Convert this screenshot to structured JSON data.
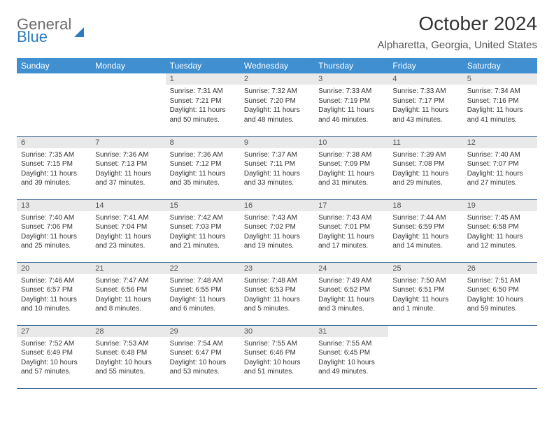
{
  "brand": {
    "word1": "General",
    "word2": "Blue"
  },
  "title": "October 2024",
  "location": "Alpharetta, Georgia, United States",
  "colors": {
    "header_bg": "#3f8fd1",
    "header_text": "#ffffff",
    "daynum_bg": "#e9e9e9",
    "row_border": "#3f6a94",
    "brand_gray": "#6b6b6b",
    "brand_blue": "#2a7bbf"
  },
  "dayHeaders": [
    "Sunday",
    "Monday",
    "Tuesday",
    "Wednesday",
    "Thursday",
    "Friday",
    "Saturday"
  ],
  "weeks": [
    [
      null,
      null,
      {
        "n": "1",
        "sunrise": "7:31 AM",
        "sunset": "7:21 PM",
        "daylight": "11 hours and 50 minutes."
      },
      {
        "n": "2",
        "sunrise": "7:32 AM",
        "sunset": "7:20 PM",
        "daylight": "11 hours and 48 minutes."
      },
      {
        "n": "3",
        "sunrise": "7:33 AM",
        "sunset": "7:19 PM",
        "daylight": "11 hours and 46 minutes."
      },
      {
        "n": "4",
        "sunrise": "7:33 AM",
        "sunset": "7:17 PM",
        "daylight": "11 hours and 43 minutes."
      },
      {
        "n": "5",
        "sunrise": "7:34 AM",
        "sunset": "7:16 PM",
        "daylight": "11 hours and 41 minutes."
      }
    ],
    [
      {
        "n": "6",
        "sunrise": "7:35 AM",
        "sunset": "7:15 PM",
        "daylight": "11 hours and 39 minutes."
      },
      {
        "n": "7",
        "sunrise": "7:36 AM",
        "sunset": "7:13 PM",
        "daylight": "11 hours and 37 minutes."
      },
      {
        "n": "8",
        "sunrise": "7:36 AM",
        "sunset": "7:12 PM",
        "daylight": "11 hours and 35 minutes."
      },
      {
        "n": "9",
        "sunrise": "7:37 AM",
        "sunset": "7:11 PM",
        "daylight": "11 hours and 33 minutes."
      },
      {
        "n": "10",
        "sunrise": "7:38 AM",
        "sunset": "7:09 PM",
        "daylight": "11 hours and 31 minutes."
      },
      {
        "n": "11",
        "sunrise": "7:39 AM",
        "sunset": "7:08 PM",
        "daylight": "11 hours and 29 minutes."
      },
      {
        "n": "12",
        "sunrise": "7:40 AM",
        "sunset": "7:07 PM",
        "daylight": "11 hours and 27 minutes."
      }
    ],
    [
      {
        "n": "13",
        "sunrise": "7:40 AM",
        "sunset": "7:06 PM",
        "daylight": "11 hours and 25 minutes."
      },
      {
        "n": "14",
        "sunrise": "7:41 AM",
        "sunset": "7:04 PM",
        "daylight": "11 hours and 23 minutes."
      },
      {
        "n": "15",
        "sunrise": "7:42 AM",
        "sunset": "7:03 PM",
        "daylight": "11 hours and 21 minutes."
      },
      {
        "n": "16",
        "sunrise": "7:43 AM",
        "sunset": "7:02 PM",
        "daylight": "11 hours and 19 minutes."
      },
      {
        "n": "17",
        "sunrise": "7:43 AM",
        "sunset": "7:01 PM",
        "daylight": "11 hours and 17 minutes."
      },
      {
        "n": "18",
        "sunrise": "7:44 AM",
        "sunset": "6:59 PM",
        "daylight": "11 hours and 14 minutes."
      },
      {
        "n": "19",
        "sunrise": "7:45 AM",
        "sunset": "6:58 PM",
        "daylight": "11 hours and 12 minutes."
      }
    ],
    [
      {
        "n": "20",
        "sunrise": "7:46 AM",
        "sunset": "6:57 PM",
        "daylight": "11 hours and 10 minutes."
      },
      {
        "n": "21",
        "sunrise": "7:47 AM",
        "sunset": "6:56 PM",
        "daylight": "11 hours and 8 minutes."
      },
      {
        "n": "22",
        "sunrise": "7:48 AM",
        "sunset": "6:55 PM",
        "daylight": "11 hours and 6 minutes."
      },
      {
        "n": "23",
        "sunrise": "7:48 AM",
        "sunset": "6:53 PM",
        "daylight": "11 hours and 5 minutes."
      },
      {
        "n": "24",
        "sunrise": "7:49 AM",
        "sunset": "6:52 PM",
        "daylight": "11 hours and 3 minutes."
      },
      {
        "n": "25",
        "sunrise": "7:50 AM",
        "sunset": "6:51 PM",
        "daylight": "11 hours and 1 minute."
      },
      {
        "n": "26",
        "sunrise": "7:51 AM",
        "sunset": "6:50 PM",
        "daylight": "10 hours and 59 minutes."
      }
    ],
    [
      {
        "n": "27",
        "sunrise": "7:52 AM",
        "sunset": "6:49 PM",
        "daylight": "10 hours and 57 minutes."
      },
      {
        "n": "28",
        "sunrise": "7:53 AM",
        "sunset": "6:48 PM",
        "daylight": "10 hours and 55 minutes."
      },
      {
        "n": "29",
        "sunrise": "7:54 AM",
        "sunset": "6:47 PM",
        "daylight": "10 hours and 53 minutes."
      },
      {
        "n": "30",
        "sunrise": "7:55 AM",
        "sunset": "6:46 PM",
        "daylight": "10 hours and 51 minutes."
      },
      {
        "n": "31",
        "sunrise": "7:55 AM",
        "sunset": "6:45 PM",
        "daylight": "10 hours and 49 minutes."
      },
      null,
      null
    ]
  ],
  "labels": {
    "sunrise": "Sunrise:",
    "sunset": "Sunset:",
    "daylight": "Daylight:"
  }
}
